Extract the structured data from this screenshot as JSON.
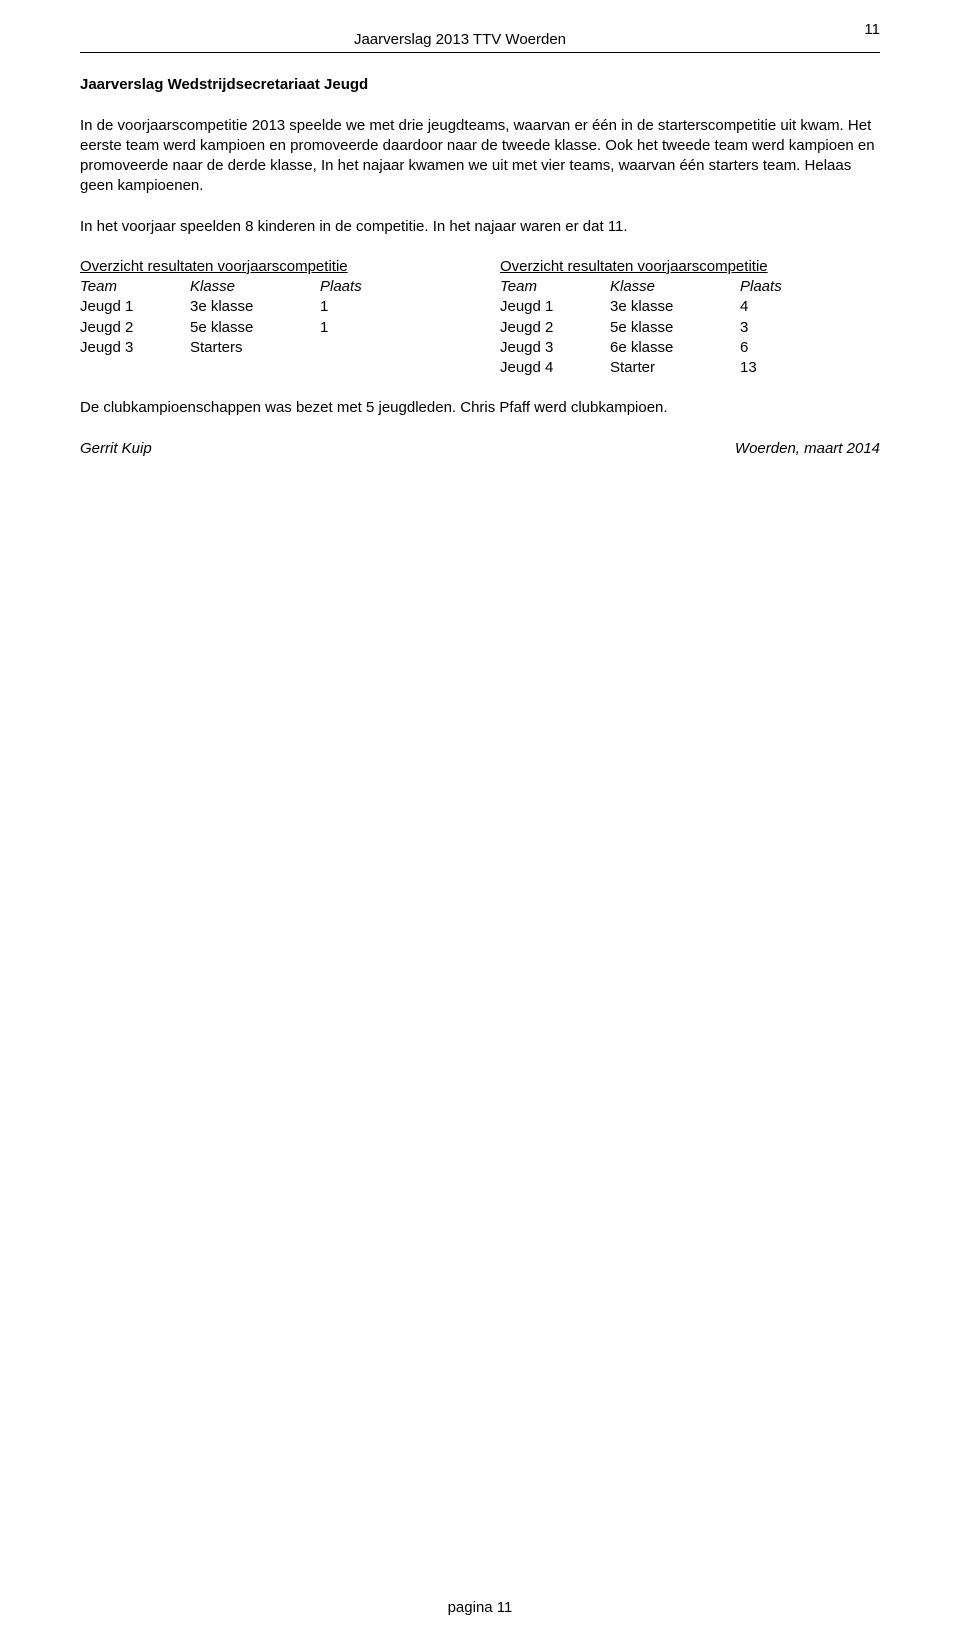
{
  "header": {
    "title": "Jaarverslag 2013 TTV Woerden",
    "page_top": "11"
  },
  "section_title": "Jaarverslag Wedstrijdsecretariaat Jeugd",
  "paragraph1": "In de voorjaarscompetitie 2013 speelde we met drie jeugdteams, waarvan er één in de starterscompetitie uit kwam. Het eerste team werd kampioen en promoveerde daardoor naar de tweede klasse. Ook het tweede team werd kampioen en promoveerde naar de derde klasse, In het najaar kwamen we uit met vier teams, waarvan één starters team. Helaas geen kampioenen.",
  "paragraph2": "In het voorjaar speelden 8 kinderen in de competitie. In het najaar waren er dat 11.",
  "table_left": {
    "title": "Overzicht resultaten voorjaarscompetitie",
    "headers": {
      "team": "Team",
      "klasse": "Klasse",
      "plaats": "Plaats"
    },
    "rows": [
      {
        "team": "Jeugd 1",
        "klasse": "3e klasse",
        "plaats": "1"
      },
      {
        "team": "Jeugd 2",
        "klasse": "5e klasse",
        "plaats": "1"
      },
      {
        "team": "Jeugd 3",
        "klasse": "Starters",
        "plaats": ""
      }
    ]
  },
  "table_right": {
    "title": "Overzicht resultaten voorjaarscompetitie",
    "headers": {
      "team": "Team",
      "klasse": "Klasse",
      "plaats": "Plaats"
    },
    "rows": [
      {
        "team": "Jeugd 1",
        "klasse": "3e klasse",
        "plaats": "4"
      },
      {
        "team": "Jeugd 2",
        "klasse": "5e klasse",
        "plaats": "3"
      },
      {
        "team": "Jeugd 3",
        "klasse": "6e klasse",
        "plaats": "6"
      },
      {
        "team": "Jeugd 4",
        "klasse": "Starter",
        "plaats": "13"
      }
    ]
  },
  "closing": "De clubkampioenschappen was bezet met 5 jeugdleden. Chris Pfaff werd clubkampioen.",
  "signature": {
    "author": "Gerrit Kuip",
    "place_date": "Woerden, maart 2014"
  },
  "footer": "pagina 11"
}
